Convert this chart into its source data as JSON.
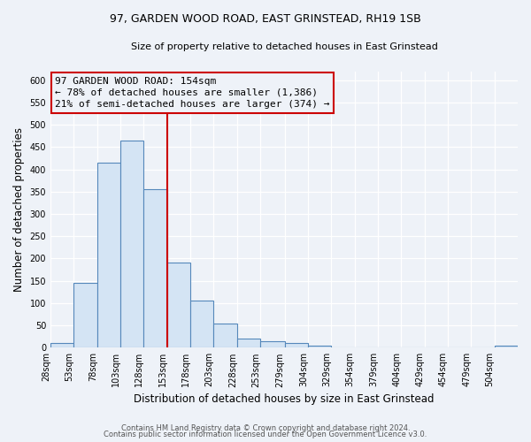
{
  "title_line1": "97, GARDEN WOOD ROAD, EAST GRINSTEAD, RH19 1SB",
  "title_line2": "Size of property relative to detached houses in East Grinstead",
  "xlabel": "Distribution of detached houses by size in East Grinstead",
  "ylabel": "Number of detached properties",
  "bin_edges": [
    28,
    53,
    78,
    103,
    128,
    153,
    178,
    203,
    228,
    253,
    279,
    304,
    329,
    354,
    379,
    404,
    429,
    454,
    479,
    504,
    529
  ],
  "bar_heights": [
    10,
    145,
    415,
    465,
    355,
    190,
    105,
    55,
    20,
    15,
    10,
    5,
    0,
    0,
    0,
    0,
    0,
    0,
    0,
    5
  ],
  "bar_color": "#d4e4f4",
  "bar_edge_color": "#5588bb",
  "property_line_x": 153,
  "property_line_color": "#cc0000",
  "annotation_line1": "97 GARDEN WOOD ROAD: 154sqm",
  "annotation_line2": "← 78% of detached houses are smaller (1,386)",
  "annotation_line3": "21% of semi-detached houses are larger (374) →",
  "annotation_box_color": "#cc0000",
  "ylim": [
    0,
    620
  ],
  "yticks": [
    0,
    50,
    100,
    150,
    200,
    250,
    300,
    350,
    400,
    450,
    500,
    550,
    600
  ],
  "footer_line1": "Contains HM Land Registry data © Crown copyright and database right 2024.",
  "footer_line2": "Contains public sector information licensed under the Open Government Licence v3.0.",
  "background_color": "#eef2f8",
  "grid_color": "#ffffff",
  "tick_label_size": 7,
  "axis_label_size": 8.5,
  "title1_fontsize": 9,
  "title2_fontsize": 8
}
